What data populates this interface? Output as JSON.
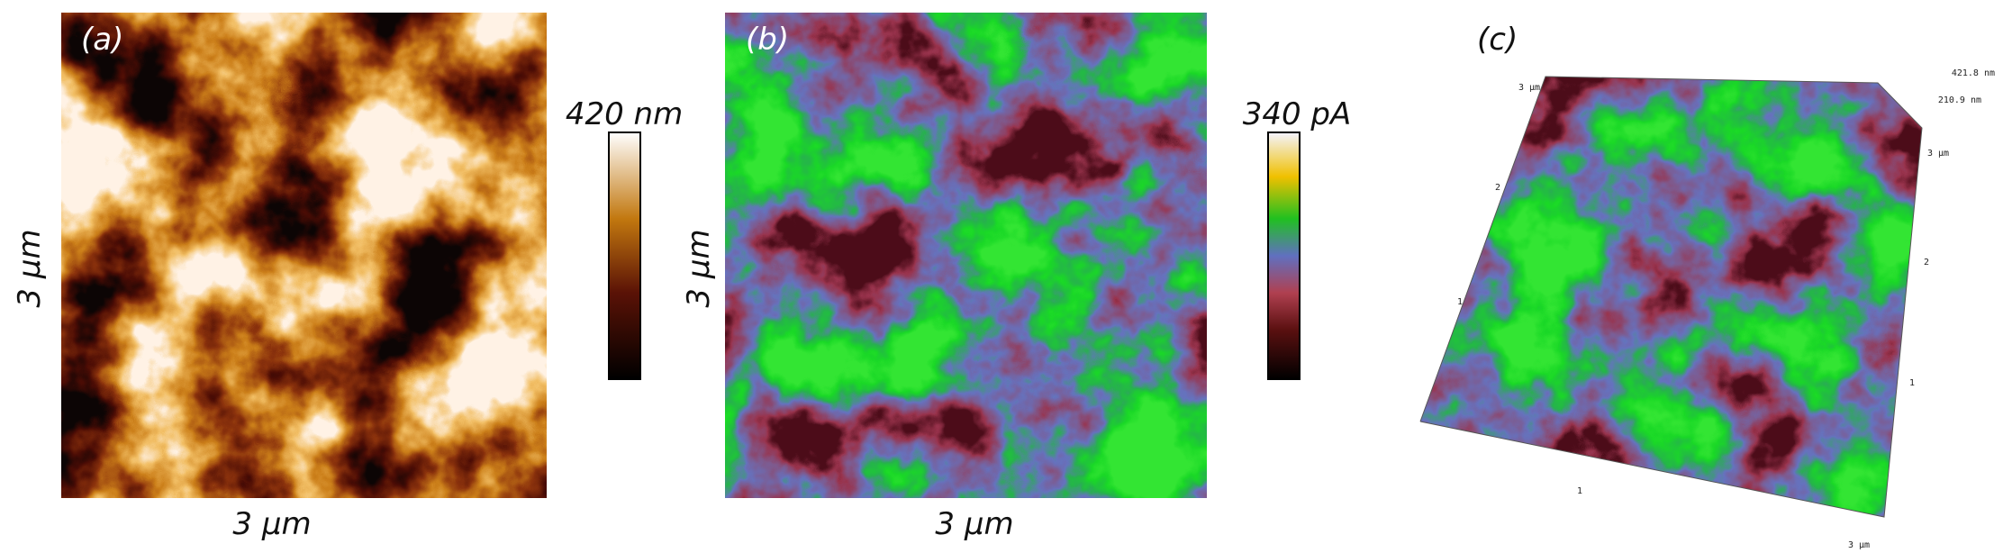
{
  "panels": [
    {
      "label": "(a)",
      "scale_label": "420 nm",
      "axis_y": "3 µm",
      "axis_x": "3 µm"
    },
    {
      "label": "(b)",
      "scale_label": "340 pA",
      "axis_y": "3 µm",
      "axis_x": "3 µm"
    },
    {
      "label": "(c)",
      "annotations": [
        "3 µm",
        "421.8 nm",
        "210.9 nm",
        "3 µm",
        "2",
        "1",
        "2",
        "1",
        "1",
        "3 µm"
      ]
    }
  ]
}
